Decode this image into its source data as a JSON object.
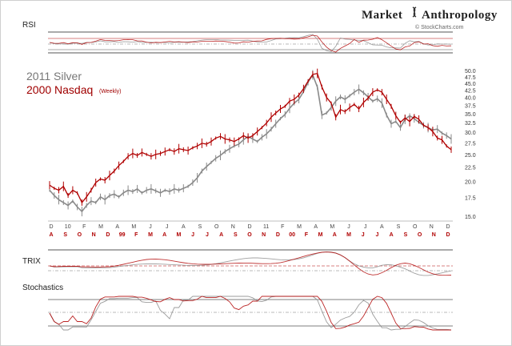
{
  "brand": {
    "name_left": "Market",
    "name_right": "Anthropology",
    "source": "© StockCharts.com"
  },
  "chart_data": {
    "type": "line",
    "title_series_1": "2011 Silver",
    "title_series_2": "2000 Nasdaq",
    "title_series_2_note": "(Weekly)",
    "y_ticks": [
      "50.0",
      "47.5",
      "45.0",
      "42.5",
      "40.0",
      "37.5",
      "35.0",
      "32.5",
      "30.0",
      "27.5",
      "25.0",
      "22.5",
      "20.0",
      "17.5",
      "15.0"
    ],
    "y_scale": "log",
    "ylim": [
      15,
      50
    ],
    "x_ticks_top": [
      "D",
      "10",
      "F",
      "M",
      "A",
      "M",
      "J",
      "J",
      "A",
      "S",
      "O",
      "N",
      "D",
      "11",
      "F",
      "M",
      "A",
      "M",
      "J",
      "J",
      "A",
      "S",
      "O",
      "N",
      "D"
    ],
    "x_ticks_bottom": [
      "A",
      "S",
      "O",
      "N",
      "D",
      "99",
      "F",
      "M",
      "A",
      "M",
      "J",
      "J",
      "A",
      "S",
      "O",
      "N",
      "D",
      "00",
      "F",
      "M",
      "A",
      "M",
      "J",
      "J",
      "A",
      "S",
      "O",
      "N",
      "D"
    ],
    "series": [
      {
        "name": "2011 Silver",
        "color": "#8a8a8a",
        "values": [
          18.6,
          17.8,
          17.2,
          16.8,
          16.4,
          17.0,
          16.2,
          15.6,
          16.4,
          17.0,
          16.8,
          17.6,
          17.2,
          17.8,
          18.0,
          17.6,
          18.2,
          18.6,
          18.4,
          18.8,
          18.2,
          18.6,
          18.8,
          18.5,
          18.2,
          18.6,
          18.4,
          18.8,
          18.6,
          18.9,
          19.2,
          19.8,
          20.6,
          21.8,
          22.6,
          23.4,
          24.2,
          24.8,
          25.6,
          26.2,
          26.8,
          27.2,
          28.2,
          29.0,
          28.4,
          27.8,
          28.8,
          29.6,
          30.8,
          32.2,
          33.6,
          34.8,
          36.6,
          38.2,
          39.4,
          42.0,
          45.4,
          48.2,
          43.6,
          34.6,
          35.2,
          36.8,
          38.8,
          40.2,
          39.4,
          40.6,
          41.8,
          42.8,
          41.6,
          40.2,
          38.8,
          39.6,
          38.2,
          34.6,
          32.2,
          32.8,
          31.2,
          33.4,
          34.4,
          33.6,
          32.6,
          31.8,
          31.2,
          30.6,
          30.8,
          29.8,
          29.2,
          28.4
        ]
      },
      {
        "name": "2000 Nasdaq",
        "color": "#b00000",
        "values": [
          19.4,
          18.9,
          18.6,
          19.2,
          17.8,
          18.6,
          18.2,
          16.8,
          17.6,
          18.6,
          19.8,
          20.4,
          20.2,
          21.0,
          21.8,
          22.8,
          23.6,
          24.6,
          25.2,
          24.8,
          25.4,
          25.0,
          24.6,
          25.0,
          25.2,
          25.6,
          26.0,
          25.6,
          26.2,
          26.0,
          25.8,
          26.4,
          26.8,
          27.4,
          27.2,
          27.8,
          28.6,
          29.0,
          28.4,
          28.2,
          27.8,
          28.4,
          29.2,
          28.6,
          29.2,
          30.2,
          31.2,
          32.4,
          34.0,
          35.2,
          36.4,
          37.2,
          38.8,
          39.4,
          40.8,
          43.0,
          45.8,
          48.4,
          48.8,
          43.6,
          40.0,
          38.2,
          34.0,
          36.2,
          35.6,
          36.8,
          37.8,
          36.4,
          38.4,
          39.8,
          41.8,
          42.6,
          41.8,
          39.4,
          37.2,
          34.4,
          32.6,
          33.8,
          32.8,
          34.2,
          33.4,
          31.8,
          31.2,
          30.2,
          28.6,
          28.2,
          26.8,
          26.0
        ]
      }
    ],
    "indicators": [
      {
        "name": "RSI",
        "guide_lines": 3
      },
      {
        "name": "TRIX",
        "guide_lines": 2
      },
      {
        "name": "Stochastics",
        "guide_lines": 3
      }
    ]
  }
}
